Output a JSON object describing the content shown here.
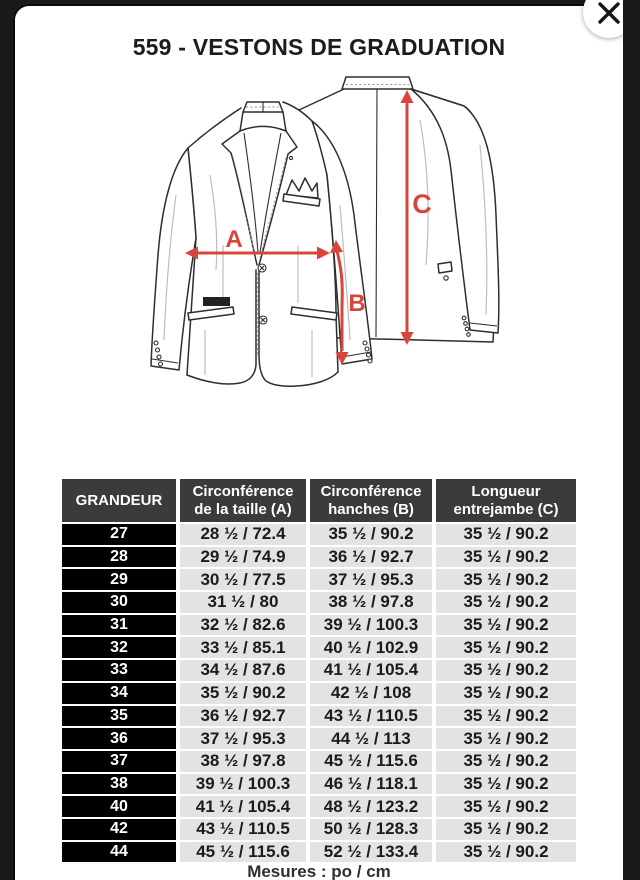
{
  "colors": {
    "background": "#191919",
    "header_bg": "#3b3b3b",
    "size_cell_bg": "#000000",
    "value_cell_bg": "#e3e3e3",
    "arrow_red": "#d8453c"
  },
  "modal": {
    "title": "559 - VESTONS DE GRADUATION",
    "close_icon": "✕"
  },
  "diagram": {
    "labels": {
      "waist": "A",
      "hips": "B",
      "length": "C"
    }
  },
  "size_table": {
    "headers": [
      "GRANDEUR",
      "Circonférence\nde la taille (A)",
      "Circonférence\nhanches (B)",
      "Longueur\nentrejambe (C)"
    ],
    "rows": [
      [
        "27",
        "28 ½ / 72.4",
        "35 ½ / 90.2",
        "35 ½ / 90.2"
      ],
      [
        "28",
        "29 ½ / 74.9",
        "36 ½ / 92.7",
        "35 ½ / 90.2"
      ],
      [
        "29",
        "30 ½ / 77.5",
        "37 ½ / 95.3",
        "35 ½ / 90.2"
      ],
      [
        "30",
        "31 ½ / 80",
        "38 ½ / 97.8",
        "35 ½ / 90.2"
      ],
      [
        "31",
        "32 ½ / 82.6",
        "39 ½ / 100.3",
        "35 ½ / 90.2"
      ],
      [
        "32",
        "33 ½ / 85.1",
        "40 ½ / 102.9",
        "35 ½ / 90.2"
      ],
      [
        "33",
        "34 ½ / 87.6",
        "41 ½ / 105.4",
        "35 ½ / 90.2"
      ],
      [
        "34",
        "35 ½ / 90.2",
        "42 ½ / 108",
        "35 ½ / 90.2"
      ],
      [
        "35",
        "36 ½ / 92.7",
        "43 ½ / 110.5",
        "35 ½ / 90.2"
      ],
      [
        "36",
        "37 ½ / 95.3",
        "44 ½ / 113",
        "35 ½ / 90.2"
      ],
      [
        "37",
        "38 ½ / 97.8",
        "45 ½ / 115.6",
        "35 ½ / 90.2"
      ],
      [
        "38",
        "39 ½ / 100.3",
        "46 ½ / 118.1",
        "35 ½ / 90.2"
      ],
      [
        "40",
        "41 ½ / 105.4",
        "48 ½ / 123.2",
        "35 ½ / 90.2"
      ],
      [
        "42",
        "43 ½ / 110.5",
        "50 ½ / 128.3",
        "35 ½ / 90.2"
      ],
      [
        "44",
        "45 ½ / 115.6",
        "52 ½ / 133.4",
        "35 ½ / 90.2"
      ]
    ],
    "footer_note": "Mesures : po / cm"
  }
}
